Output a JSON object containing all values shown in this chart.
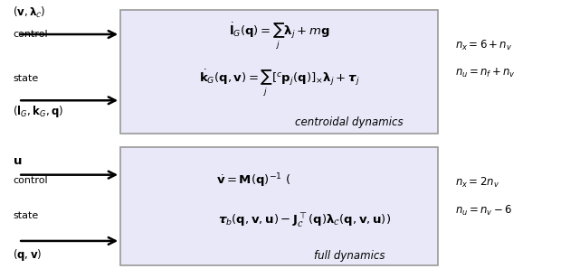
{
  "box1_color": "#e8e8f8",
  "box1_edge": "#999999",
  "box2_color": "#e8e8f8",
  "box2_edge": "#999999",
  "fig_bg": "#ffffff",
  "arrow_color": "#000000",
  "text_color": "#000000",
  "eq1_top": "$\\dot{\\mathbf{l}}_G(\\mathbf{q}) = \\sum_j \\boldsymbol{\\lambda}_j + m\\mathbf{g}$",
  "eq1_bot": "$\\dot{\\mathbf{k}}_G(\\mathbf{q}, \\mathbf{v}) = \\sum_j [{}^c\\mathbf{p}_j(\\mathbf{q})]_{\\times} \\boldsymbol{\\lambda}_j + \\boldsymbol{\\tau}_j$",
  "label1": "centroidal dynamics",
  "eq2_top": "$\\dot{\\mathbf{v}} = \\mathbf{M}(\\mathbf{q})^{-1}$ (",
  "eq2_bot": "$\\boldsymbol{\\tau}_b(\\mathbf{q}, \\mathbf{v}, \\mathbf{u}) - \\mathbf{J}_{\\mathcal{C}}^{\\top}(\\mathbf{q})\\boldsymbol{\\lambda}_{\\mathcal{C}}(\\mathbf{q}, \\mathbf{v}, \\mathbf{u}))$",
  "label2": "full dynamics",
  "ctrl1_label": "$(\\mathbf{v}, \\boldsymbol{\\lambda}_{\\mathcal{C}})$",
  "ctrl1_sub": "control",
  "state1_label": "$(\\mathbf{l}_G, \\mathbf{k}_G, \\mathbf{q})$",
  "state1_sub": "state",
  "ctrl2_label": "$\\mathbf{u}$",
  "ctrl2_sub": "control",
  "state2_label": "$(\\mathbf{q}, \\mathbf{v})$",
  "state2_sub": "state",
  "nx1": "$n_x = 6 + n_v$",
  "nu1": "$n_u = n_f + n_v$",
  "nx2": "$n_x = 2n_v$",
  "nu2": "$n_u = n_v - 6$"
}
